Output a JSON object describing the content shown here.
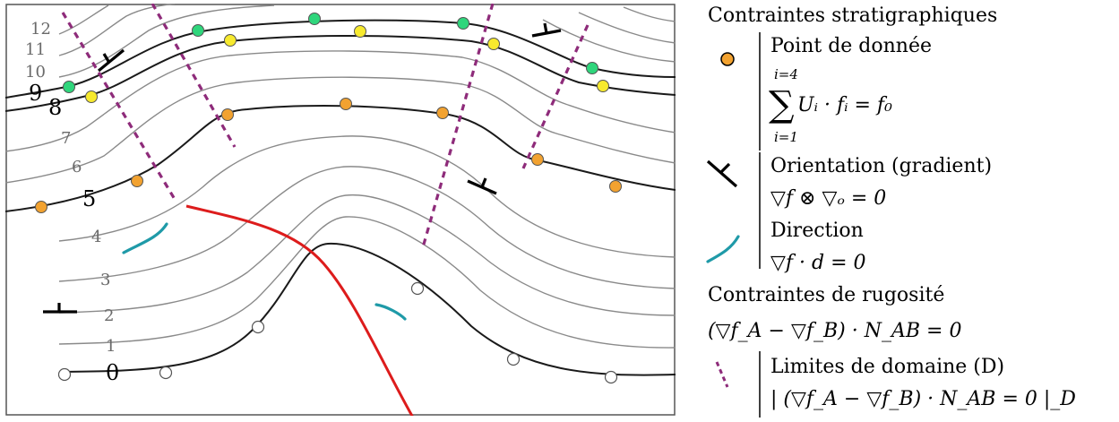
{
  "contour_labels": [
    "0",
    "1",
    "2",
    "3",
    "4",
    "5",
    "6",
    "7",
    "8",
    "9",
    "10",
    "11",
    "12"
  ],
  "colors": {
    "data_point": "#f2a230",
    "level_point_yellow": "#f7ea2e",
    "level_point_green": "#2fd67c",
    "open_point": "#ffffff",
    "fault": "#dd1c1c",
    "domain_boundary": "#8e2b7a",
    "direction": "#1f9aa8",
    "key_contour": "#1a1a1a",
    "contour": "#8a8a8a"
  },
  "legend": {
    "strat_title": "Contraintes stratigraphiques",
    "data_point_label": "Point de donnée",
    "sum_upper": "i=4",
    "sum_lower": "i=1",
    "sum_body": "Uᵢ · fᵢ = f₀",
    "orientation_label": "Orientation (gradient)",
    "orientation_eq": "▽f ⊗ ▽ₒ = 0",
    "direction_label": "Direction",
    "direction_eq": "▽f · d = 0",
    "rough_title": "Contraintes de rugosité",
    "rough_eq": "(▽f_A − ▽f_B) · N_AB = 0",
    "domain_label": "Limites de domaine (D)",
    "domain_eq": "| (▽f_A − ▽f_B) · N_AB = 0 |_D"
  },
  "icons": [
    "data-point-icon",
    "orientation-icon",
    "direction-icon",
    "domain-boundary-icon"
  ]
}
